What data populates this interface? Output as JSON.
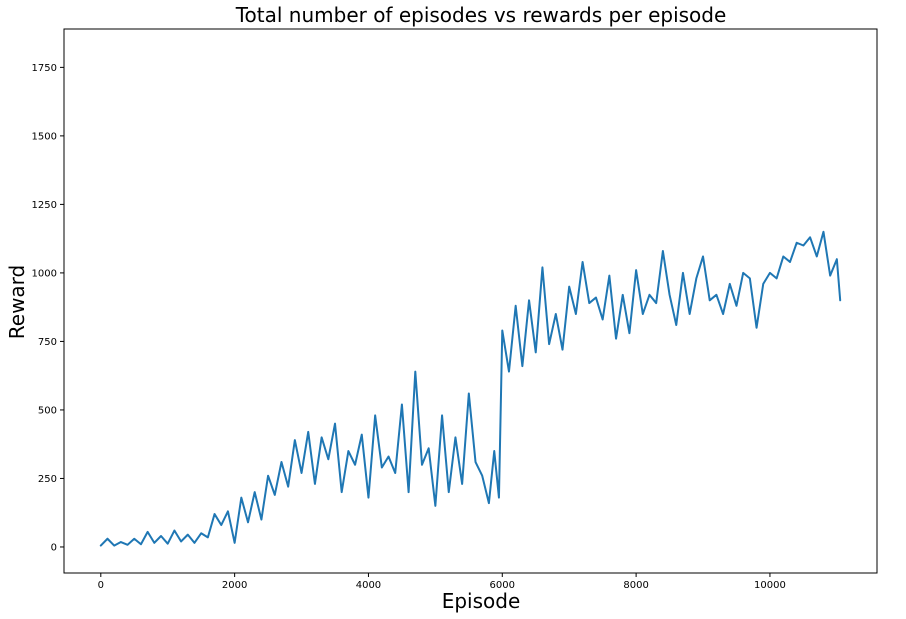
{
  "chart_data": {
    "type": "line",
    "title": "Total number of episodes vs rewards per episode",
    "xlabel": "Episode",
    "ylabel": "Reward",
    "xlim": [
      -550,
      11600
    ],
    "ylim": [
      -95,
      1890
    ],
    "xticks": [
      0,
      2000,
      4000,
      6000,
      8000,
      10000
    ],
    "yticks": [
      0,
      250,
      500,
      750,
      1000,
      1250,
      1500,
      1750
    ],
    "grid": false,
    "legend": "none",
    "series": [
      {
        "color": "#1f77b4",
        "x": [
          0,
          100,
          200,
          300,
          400,
          500,
          600,
          700,
          800,
          900,
          1000,
          1100,
          1200,
          1300,
          1400,
          1500,
          1600,
          1700,
          1800,
          1900,
          2000,
          2100,
          2200,
          2300,
          2400,
          2500,
          2600,
          2700,
          2800,
          2900,
          3000,
          3100,
          3200,
          3300,
          3400,
          3500,
          3600,
          3700,
          3800,
          3900,
          4000,
          4100,
          4200,
          4300,
          4400,
          4500,
          4600,
          4700,
          4800,
          4900,
          5000,
          5100,
          5200,
          5300,
          5400,
          5500,
          5600,
          5700,
          5800,
          5880,
          5950,
          6000,
          6100,
          6200,
          6300,
          6400,
          6500,
          6600,
          6700,
          6800,
          6900,
          7000,
          7100,
          7200,
          7300,
          7400,
          7500,
          7600,
          7700,
          7800,
          7900,
          8000,
          8100,
          8200,
          8300,
          8400,
          8500,
          8600,
          8700,
          8800,
          8900,
          9000,
          9100,
          9200,
          9300,
          9400,
          9500,
          9600,
          9700,
          9800,
          9900,
          10000,
          10100,
          10200,
          10300,
          10400,
          10500,
          10600,
          10700,
          10800,
          10900,
          11000,
          11050
        ],
        "y": [
          5,
          30,
          5,
          18,
          8,
          30,
          10,
          55,
          15,
          40,
          12,
          60,
          20,
          45,
          15,
          50,
          35,
          120,
          80,
          130,
          15,
          180,
          90,
          200,
          100,
          260,
          190,
          310,
          220,
          390,
          270,
          420,
          230,
          400,
          320,
          450,
          200,
          350,
          300,
          410,
          180,
          480,
          290,
          330,
          270,
          520,
          200,
          640,
          300,
          360,
          150,
          480,
          200,
          400,
          230,
          560,
          310,
          260,
          160,
          350,
          180,
          790,
          640,
          880,
          660,
          900,
          710,
          1020,
          740,
          850,
          720,
          950,
          850,
          1040,
          890,
          910,
          830,
          990,
          760,
          920,
          780,
          1010,
          850,
          920,
          890,
          1080,
          920,
          810,
          1000,
          850,
          980,
          1060,
          900,
          920,
          850,
          960,
          880,
          1000,
          980,
          800,
          960,
          1000,
          980,
          1060,
          1040,
          1110,
          1100,
          1130,
          1060,
          1150,
          990,
          1050,
          900
        ]
      }
    ]
  }
}
